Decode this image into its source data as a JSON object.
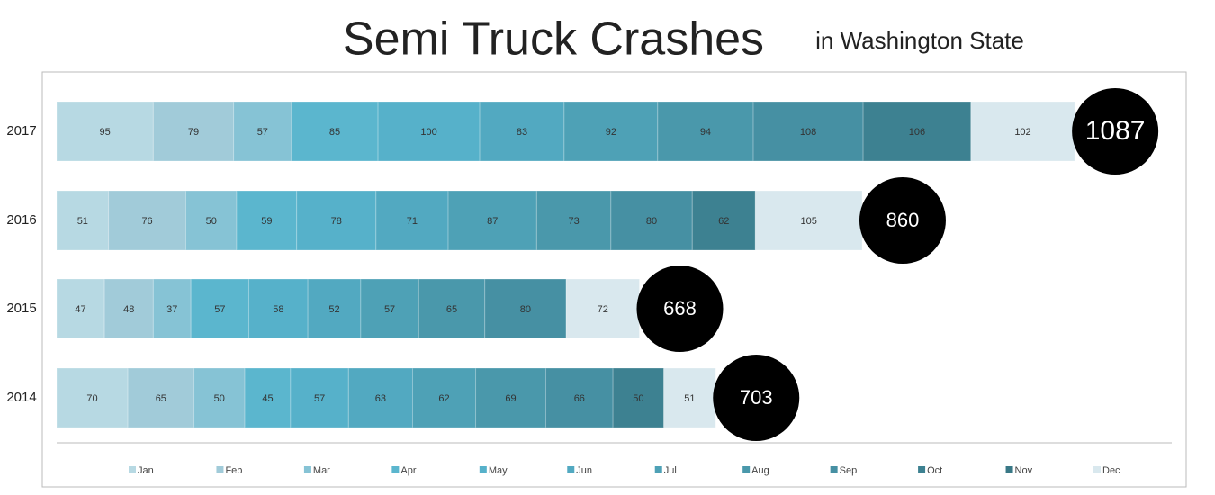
{
  "chart_data": {
    "type": "stacked-bar",
    "title": "Semi Truck Crashes",
    "subtitle": "in Washington State",
    "categories": [
      "2017",
      "2016",
      "2015",
      "2014"
    ],
    "totals": [
      1087,
      860,
      668,
      703
    ],
    "series": [
      {
        "name": "Jan",
        "color": "#b7d9e3",
        "values": [
          95,
          51,
          47,
          70
        ]
      },
      {
        "name": "Feb",
        "color": "#a1cbd9",
        "values": [
          79,
          76,
          48,
          65
        ]
      },
      {
        "name": "Mar",
        "color": "#86c3d5",
        "values": [
          57,
          50,
          37,
          50
        ]
      },
      {
        "name": "Apr",
        "color": "#5bb6ce",
        "values": [
          85,
          59,
          57,
          45
        ]
      },
      {
        "name": "May",
        "color": "#56b1ca",
        "values": [
          100,
          78,
          58,
          57
        ]
      },
      {
        "name": "Jun",
        "color": "#52a9c1",
        "values": [
          83,
          71,
          52,
          63
        ]
      },
      {
        "name": "Jul",
        "color": "#4ea1b6",
        "values": [
          92,
          87,
          57,
          62
        ]
      },
      {
        "name": "Aug",
        "color": "#4a98ab",
        "values": [
          94,
          73,
          65,
          69
        ]
      },
      {
        "name": "Sep",
        "color": "#4690a3",
        "values": [
          108,
          80,
          80,
          66
        ]
      },
      {
        "name": "Oct",
        "color": "#3d8191",
        "values": [
          106,
          62,
          null,
          50
        ]
      },
      {
        "name": "Nov",
        "color": "#397886",
        "values": [
          null,
          null,
          null,
          null
        ]
      },
      {
        "name": "Dec",
        "color": "#d9e8ee",
        "values": [
          102,
          105,
          72,
          51
        ]
      }
    ]
  }
}
